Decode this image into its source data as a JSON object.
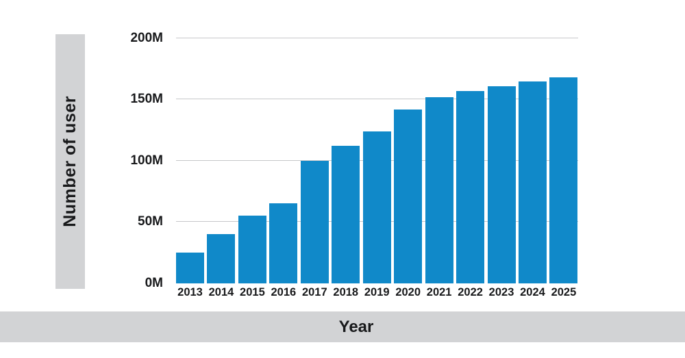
{
  "chart_data": {
    "type": "bar",
    "title": "",
    "xlabel": "Year",
    "ylabel": "Number of user",
    "categories": [
      "2013",
      "2014",
      "2015",
      "2016",
      "2017",
      "2018",
      "2019",
      "2020",
      "2021",
      "2022",
      "2023",
      "2024",
      "2025"
    ],
    "values": [
      25,
      40,
      55,
      65,
      100,
      112,
      124,
      142,
      152,
      157,
      161,
      165,
      168
    ],
    "unit": "M",
    "ylim": [
      0,
      200
    ],
    "y_ticks": [
      {
        "label": "0M",
        "value": 0
      },
      {
        "label": "50M",
        "value": 50
      },
      {
        "label": "100M",
        "value": 100
      },
      {
        "label": "150M",
        "value": 150
      },
      {
        "label": "200M",
        "value": 200
      }
    ],
    "grid": true,
    "legend": "none",
    "bar_color": "#1089c9",
    "gridline_color": "#c6c7c9",
    "axis_band_color": "#d2d3d5",
    "text_color": "#18191b"
  }
}
